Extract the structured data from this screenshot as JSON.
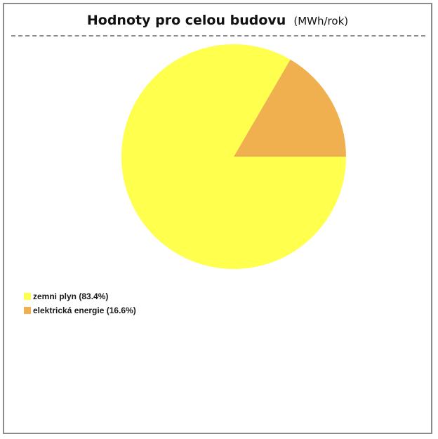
{
  "title": "Hodnoty pro celou budovu",
  "unit": "(MWh/rok)",
  "chart_data": {
    "type": "pie",
    "title": "Hodnoty pro celou budovu",
    "unit": "(MWh/rok)",
    "slices": [
      {
        "label": "zemni plyn",
        "percent": 83.4,
        "color": "#ffff4d"
      },
      {
        "label": "elektrická energie",
        "percent": 16.6,
        "color": "#f0b050"
      }
    ],
    "legend": [
      {
        "text": "zemni plyn (83.4%)",
        "color": "#ffff4d"
      },
      {
        "text": "elektrická energie (16.6%)",
        "color": "#f0b050"
      }
    ],
    "legend_position": "bottom-left"
  }
}
